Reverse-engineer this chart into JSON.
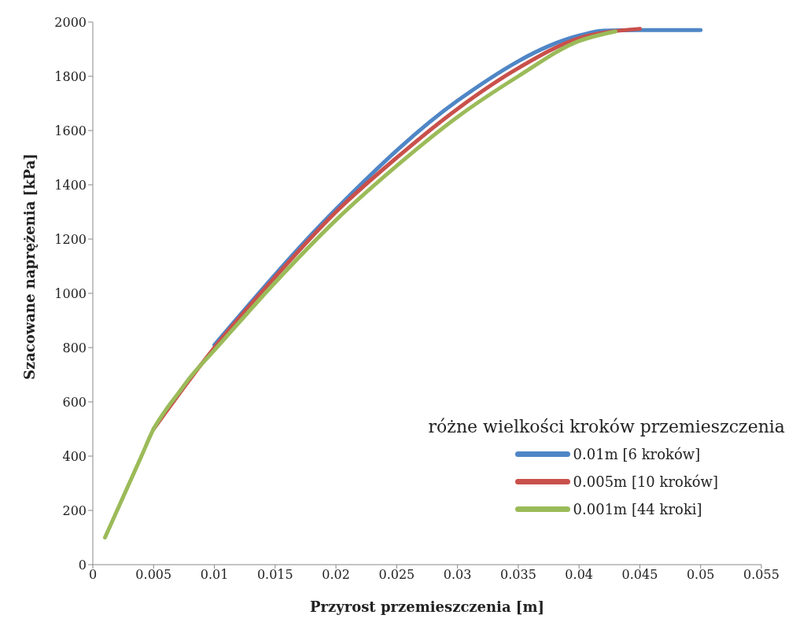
{
  "chart_data": {
    "type": "line",
    "xlabel": "Przyrost przemieszczenia [m]",
    "ylabel": "Szacowane naprężenia [kPa]",
    "legend_title": "różne wielkości kroków przemieszczenia",
    "legend": "bottom right",
    "grid": false,
    "marker": "none",
    "line_style": "solid",
    "xlim": [
      0,
      0.055
    ],
    "xticks": [
      0,
      0.005,
      0.01,
      0.015,
      0.02,
      0.025,
      0.03,
      0.035,
      0.04,
      0.045,
      0.05,
      0.055
    ],
    "ylim": [
      0,
      2000
    ],
    "yticks": [
      0,
      200,
      400,
      600,
      800,
      1000,
      1200,
      1400,
      1600,
      1800,
      2000
    ],
    "series": [
      {
        "name": "0.01m [6 kroków]",
        "color": "#4f86c6",
        "x": [
          0.01,
          0.02,
          0.03,
          0.04,
          0.042,
          0.045,
          0.05
        ],
        "values": [
          810,
          1310,
          1710,
          1950,
          1968,
          1970,
          1970
        ]
      },
      {
        "name": "0.005m [10 kroków]",
        "color": "#c9504b",
        "x": [
          0.005,
          0.01,
          0.015,
          0.02,
          0.025,
          0.03,
          0.035,
          0.04,
          0.045
        ],
        "values": [
          500,
          800,
          1060,
          1300,
          1500,
          1680,
          1830,
          1940,
          1975
        ]
      },
      {
        "name": "0.001m [44 kroki]",
        "color": "#9bbb59",
        "x": [
          0.001,
          0.002,
          0.003,
          0.004,
          0.005,
          0.006,
          0.007,
          0.008,
          0.01,
          0.015,
          0.02,
          0.025,
          0.03,
          0.035,
          0.04,
          0.043
        ],
        "values": [
          100,
          200,
          300,
          400,
          500,
          570,
          630,
          690,
          790,
          1040,
          1270,
          1470,
          1650,
          1800,
          1930,
          1965
        ]
      }
    ]
  }
}
